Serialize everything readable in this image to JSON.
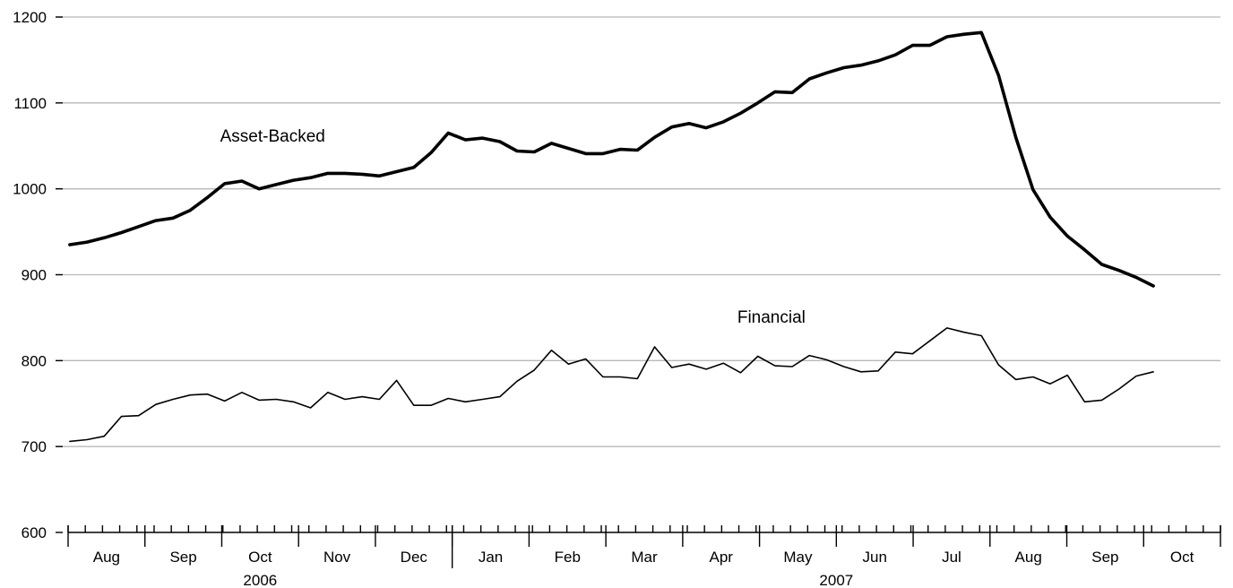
{
  "chart_data": {
    "type": "line",
    "title": "",
    "xlabel": "",
    "ylabel": "",
    "ylim": [
      600,
      1200
    ],
    "yticks": [
      600,
      700,
      800,
      900,
      1000,
      1100,
      1200
    ],
    "grid": "horizontal",
    "legend": "none",
    "x_start": "2006-07-19",
    "x_interval_days": 7,
    "month_labels": [
      "Aug",
      "Sep",
      "Oct",
      "Nov",
      "Dec",
      "Jan",
      "Feb",
      "Mar",
      "Apr",
      "May",
      "Jun",
      "Jul",
      "Aug",
      "Sep",
      "Oct"
    ],
    "year_labels": [
      "2006",
      "2007"
    ],
    "series": [
      {
        "name": "Asset-Backed",
        "values": [
          935,
          938,
          943,
          949,
          956,
          963,
          966,
          975,
          990,
          1006,
          1009,
          1000,
          1005,
          1010,
          1013,
          1018,
          1018,
          1017,
          1015,
          1020,
          1025,
          1042,
          1065,
          1057,
          1059,
          1055,
          1044,
          1043,
          1053,
          1047,
          1041,
          1041,
          1046,
          1045,
          1060,
          1072,
          1076,
          1071,
          1078,
          1088,
          1100,
          1113,
          1112,
          1128,
          1135,
          1141,
          1144,
          1149,
          1156,
          1167,
          1167,
          1177,
          1180,
          1182,
          1132,
          1060,
          999,
          967,
          945,
          929,
          912,
          905,
          897,
          887
        ]
      },
      {
        "name": "Financial",
        "values": [
          706,
          708,
          712,
          735,
          736,
          749,
          755,
          760,
          761,
          753,
          763,
          754,
          755,
          752,
          745,
          763,
          755,
          758,
          755,
          777,
          748,
          748,
          756,
          752,
          755,
          758,
          776,
          789,
          812,
          796,
          802,
          781,
          781,
          779,
          816,
          792,
          796,
          790,
          797,
          786,
          805,
          794,
          793,
          806,
          801,
          793,
          787,
          788,
          810,
          808,
          823,
          838,
          833,
          829,
          795,
          778,
          781,
          773,
          783,
          752,
          754,
          767,
          782,
          787
        ]
      }
    ]
  }
}
